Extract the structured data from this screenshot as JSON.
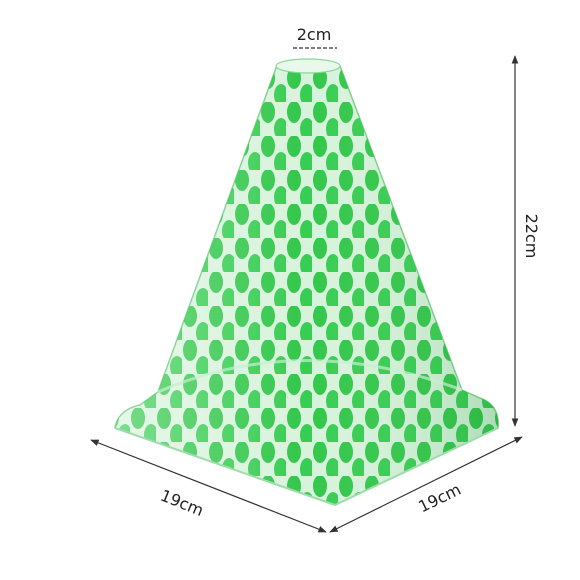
{
  "dimensions": {
    "top_width": "2cm",
    "height": "22cm",
    "base_left": "19cm",
    "base_right": "19cm"
  }
}
